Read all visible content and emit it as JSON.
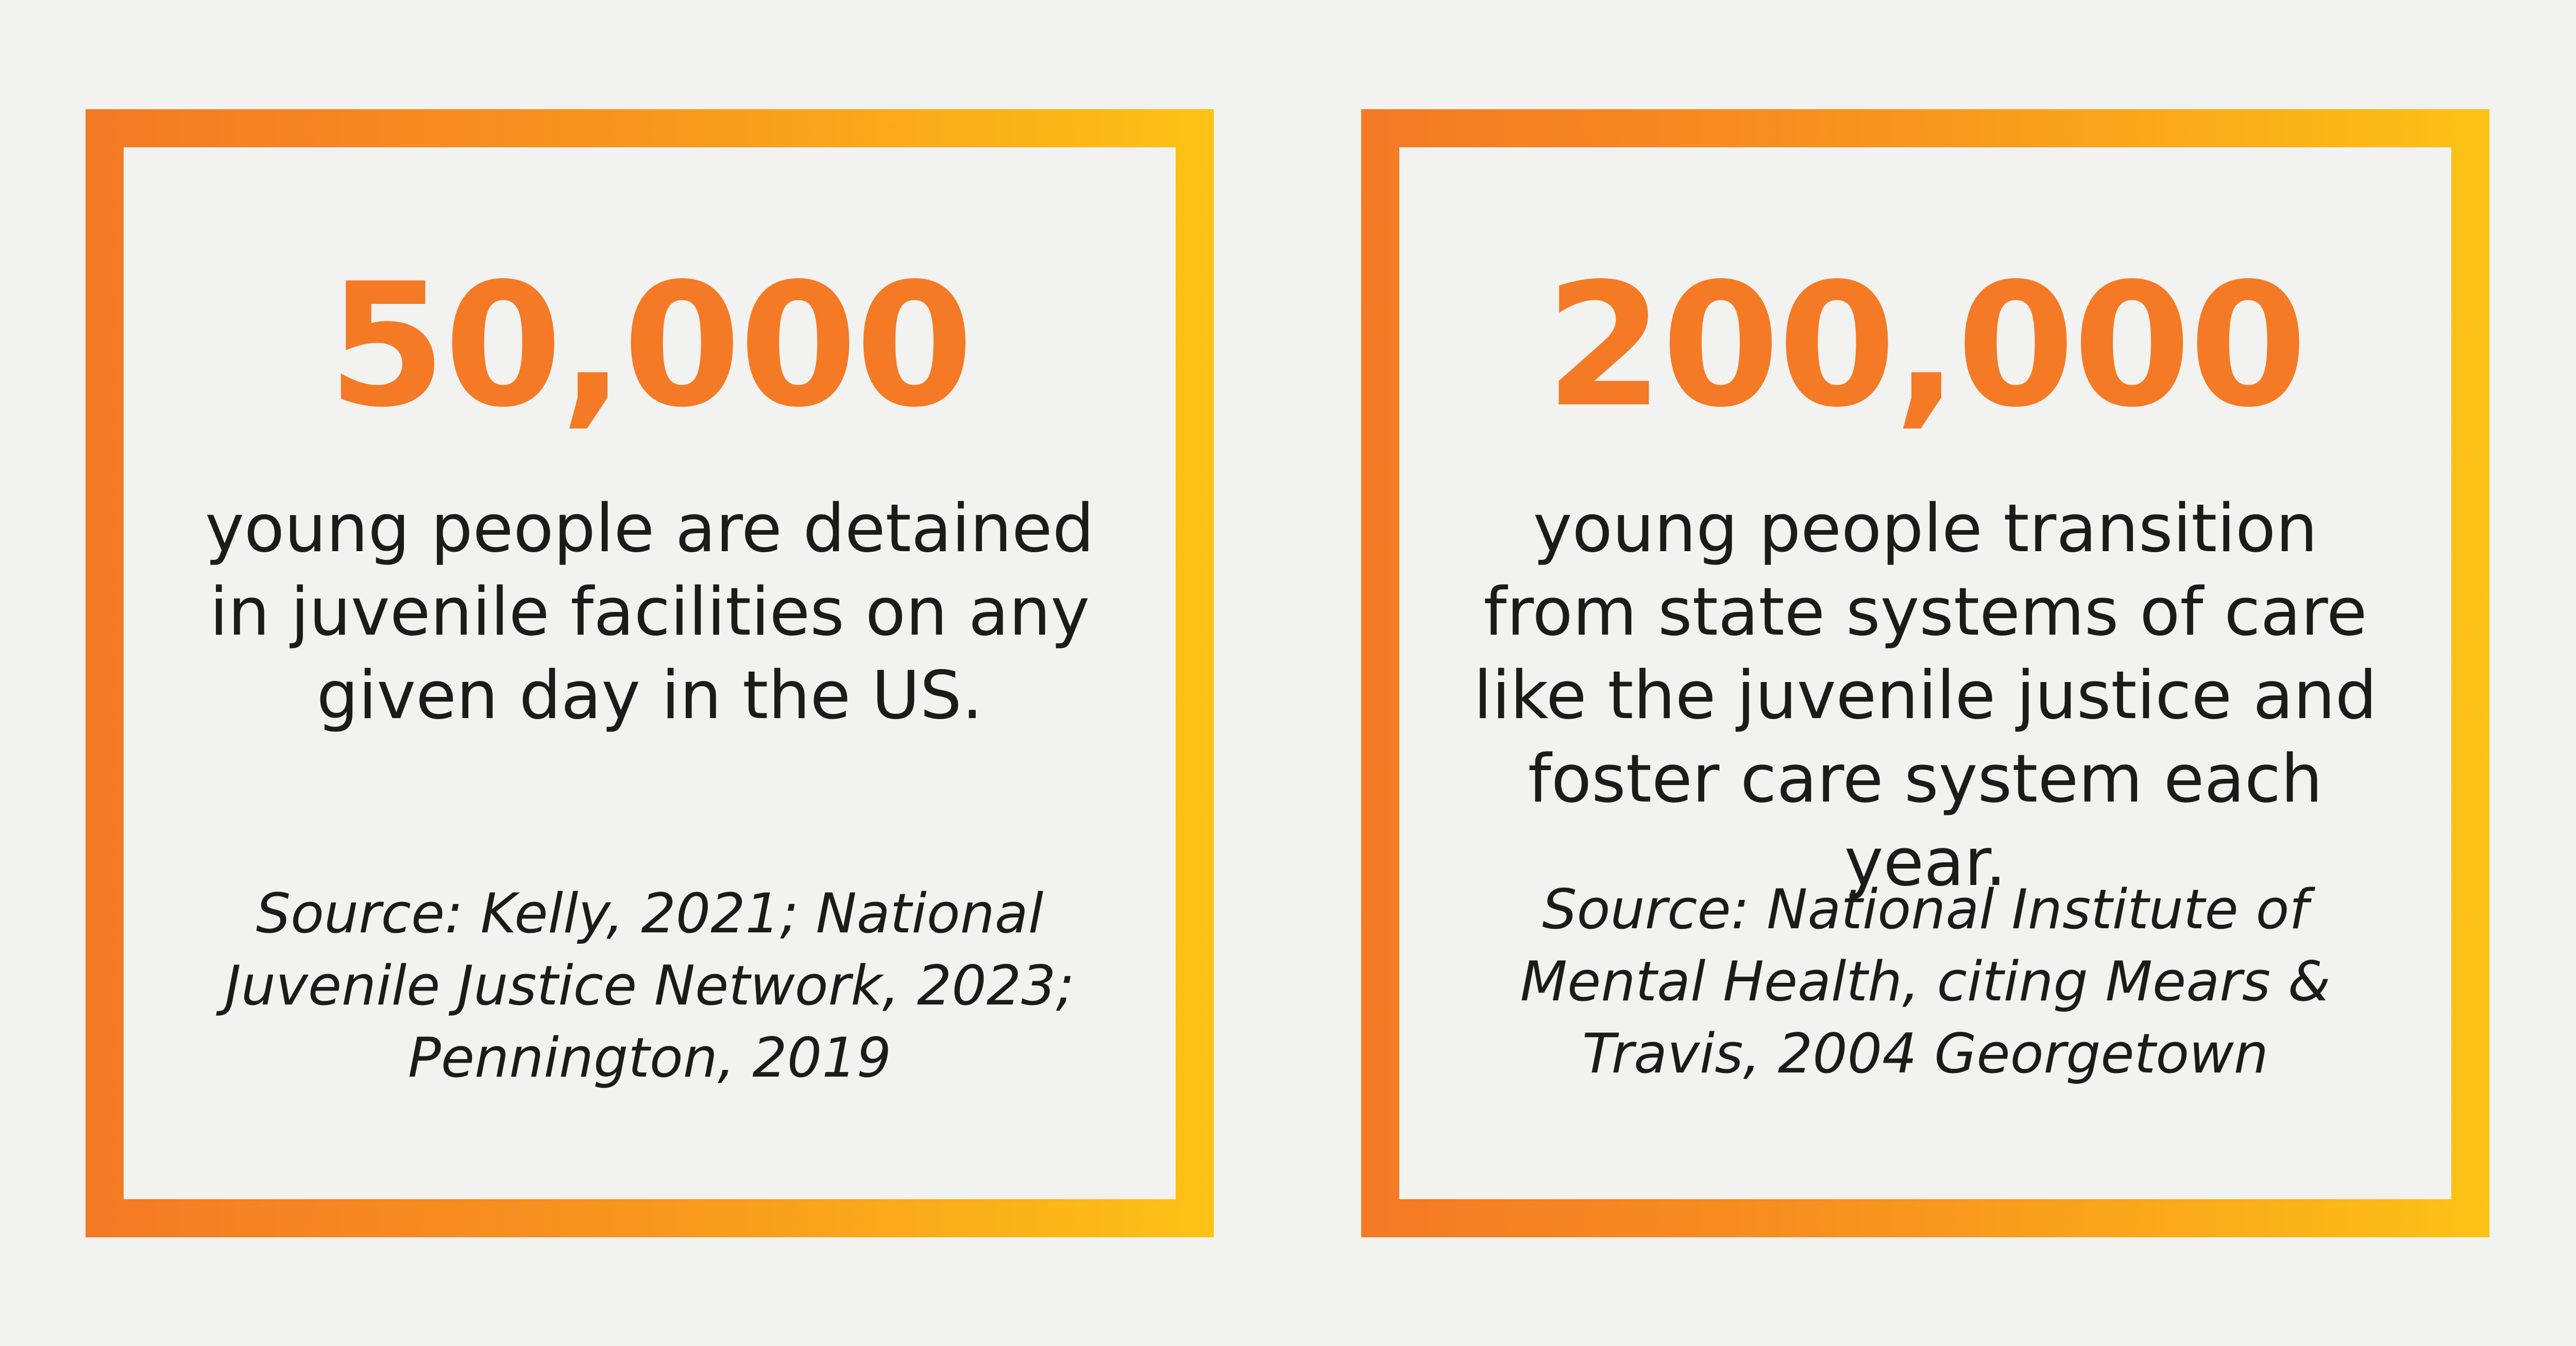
{
  "cards": [
    {
      "stat": "50,000",
      "description": "young people are detained in juvenile facilities on any given day in the US.",
      "source": "Source: Kelly, 2021; National Juvenile Justice Network, 2023; Pennington, 2019"
    },
    {
      "stat": "200,000",
      "description": "young people transition from state systems of care like the juvenile justice and foster care system each year.",
      "source": "Source: National Institute of Mental Health, citing Mears & Travis, 2004 Georgetown"
    }
  ],
  "colors": {
    "background": "#f2f2f0",
    "accent_orange": "#f47a25",
    "accent_yellow": "#fcc216",
    "text": "#1b1b1b"
  }
}
